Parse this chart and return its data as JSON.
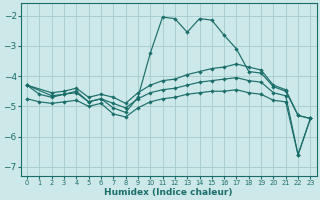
{
  "background_color": "#cde8e8",
  "grid_color": "#aacece",
  "line_color": "#1a6e6a",
  "xlabel": "Humidex (Indice chaleur)",
  "xlim": [
    -0.5,
    23.5
  ],
  "ylim": [
    -7.3,
    -1.6
  ],
  "yticks": [
    -7,
    -6,
    -5,
    -4,
    -3,
    -2
  ],
  "xticks": [
    0,
    1,
    2,
    3,
    4,
    5,
    6,
    7,
    8,
    9,
    10,
    11,
    12,
    13,
    14,
    15,
    16,
    17,
    18,
    19,
    20,
    21,
    22,
    23
  ],
  "series": [
    {
      "x": [
        0,
        1,
        2,
        3,
        4,
        5,
        6,
        7,
        8,
        9,
        10,
        11,
        12,
        13,
        14,
        15,
        16,
        17,
        18,
        19,
        20,
        21,
        22,
        23
      ],
      "y": [
        -4.3,
        -4.6,
        -4.7,
        -4.6,
        -4.5,
        -4.85,
        -4.75,
        -5.05,
        -5.2,
        -4.7,
        -3.25,
        -2.05,
        -2.1,
        -2.55,
        -2.1,
        -2.15,
        -2.65,
        -3.1,
        -3.85,
        -3.9,
        -4.35,
        -4.5,
        -5.3,
        -5.4
      ]
    },
    {
      "x": [
        0,
        2,
        3,
        4,
        5,
        6,
        7,
        8,
        9,
        10,
        11,
        12,
        13,
        14,
        15,
        16,
        17,
        18,
        19,
        20,
        21,
        22,
        23
      ],
      "y": [
        -4.3,
        -4.55,
        -4.5,
        -4.4,
        -4.7,
        -4.6,
        -4.7,
        -4.9,
        -4.55,
        -4.3,
        -4.15,
        -4.1,
        -3.95,
        -3.85,
        -3.75,
        -3.7,
        -3.6,
        -3.7,
        -3.8,
        -4.3,
        -4.45,
        -5.3,
        -5.4
      ]
    },
    {
      "x": [
        0,
        2,
        3,
        4,
        5,
        6,
        7,
        8,
        9,
        10,
        11,
        12,
        13,
        14,
        15,
        16,
        17,
        18,
        19,
        20,
        21,
        22,
        23
      ],
      "y": [
        -4.3,
        -4.65,
        -4.6,
        -4.55,
        -4.85,
        -4.75,
        -4.9,
        -5.05,
        -4.75,
        -4.55,
        -4.45,
        -4.4,
        -4.3,
        -4.2,
        -4.15,
        -4.1,
        -4.05,
        -4.15,
        -4.2,
        -4.55,
        -4.65,
        -6.6,
        -5.4
      ]
    },
    {
      "x": [
        0,
        1,
        2,
        3,
        4,
        5,
        6,
        7,
        8,
        9,
        10,
        11,
        12,
        13,
        14,
        15,
        16,
        17,
        18,
        19,
        20,
        21,
        22,
        23
      ],
      "y": [
        -4.75,
        -4.85,
        -4.9,
        -4.85,
        -4.8,
        -5.0,
        -4.9,
        -5.25,
        -5.35,
        -5.05,
        -4.85,
        -4.75,
        -4.7,
        -4.6,
        -4.55,
        -4.5,
        -4.5,
        -4.45,
        -4.55,
        -4.6,
        -4.8,
        -4.85,
        -6.6,
        -5.4
      ]
    }
  ]
}
